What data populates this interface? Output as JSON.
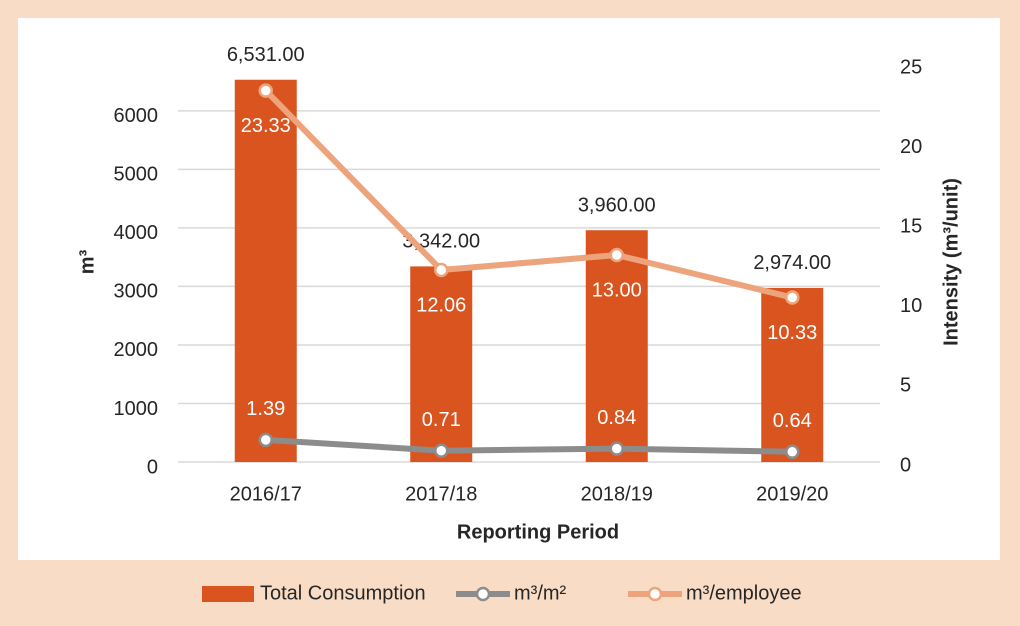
{
  "chart_data": {
    "type": "bar",
    "categories": [
      "2016/17",
      "2017/18",
      "2018/19",
      "2019/20"
    ],
    "series": [
      {
        "name": "Total Consumption",
        "type": "bar",
        "color": "#d9541e",
        "values": [
          6531,
          3342,
          3960,
          2974
        ],
        "value_labels": [
          "6,531.00",
          "3,342.00",
          "3,960.00",
          "2,974.00"
        ]
      },
      {
        "name": "m³/m²",
        "type": "line",
        "axis": "y2",
        "color": "#8c8c8c",
        "values": [
          1.39,
          0.71,
          0.84,
          0.64
        ],
        "value_labels": [
          "1.39",
          "0.71",
          "0.84",
          "0.64"
        ]
      },
      {
        "name": "m³/employee",
        "type": "line",
        "axis": "y2",
        "color": "#eda47c",
        "values": [
          23.33,
          12.06,
          13.0,
          10.33
        ],
        "value_labels": [
          "23.33",
          "12.06",
          "13.00",
          "10.33"
        ]
      }
    ],
    "xlabel": "Reporting Period",
    "ylabel": "m³",
    "y2label": "Intensity (m³/unit)",
    "ylim": [
      0,
      6800
    ],
    "yticks": [
      0,
      1000,
      2000,
      3000,
      4000,
      5000,
      6000
    ],
    "y2lim": [
      0,
      25
    ],
    "y2ticks": [
      0,
      5,
      10,
      15,
      20,
      25
    ],
    "grid": true,
    "legend": "bottom"
  }
}
